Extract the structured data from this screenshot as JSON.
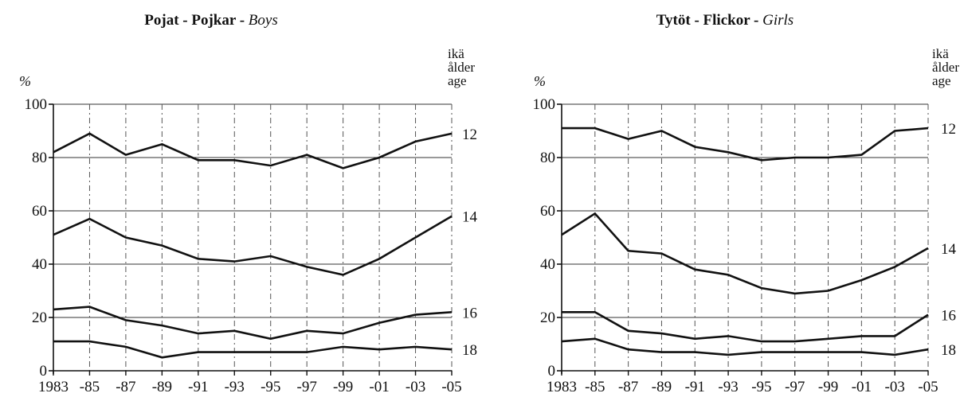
{
  "chart_data": [
    {
      "type": "line",
      "title_parts": [
        "Pojat - Pojkar - ",
        "Boys"
      ],
      "ylabel": "%",
      "right_header": [
        "ikä",
        "ålder",
        "age"
      ],
      "x_tick_labels": [
        "1983",
        "-85",
        "-87",
        "-89",
        "-91",
        "-93",
        "-95",
        "-97",
        "-99",
        "-01",
        "-03",
        "-05"
      ],
      "y_ticks": [
        0,
        20,
        40,
        60,
        80,
        100
      ],
      "ylim": [
        0,
        100
      ],
      "grid": true,
      "series": [
        {
          "name": "12",
          "values": [
            82,
            89,
            81,
            85,
            79,
            79,
            77,
            81,
            76,
            80,
            86,
            89
          ]
        },
        {
          "name": "14",
          "values": [
            51,
            57,
            50,
            47,
            42,
            41,
            43,
            39,
            36,
            42,
            50,
            58
          ]
        },
        {
          "name": "16",
          "values": [
            23,
            24,
            19,
            17,
            14,
            15,
            12,
            15,
            14,
            18,
            21,
            22
          ]
        },
        {
          "name": "18",
          "values": [
            11,
            11,
            9,
            5,
            7,
            7,
            7,
            7,
            9,
            8,
            9,
            8
          ]
        }
      ]
    },
    {
      "type": "line",
      "title_parts": [
        "Tytöt - Flickor - ",
        "Girls"
      ],
      "ylabel": "%",
      "right_header": [
        "ikä",
        "ålder",
        "age"
      ],
      "x_tick_labels": [
        "1983",
        "-85",
        "-87",
        "-89",
        "-91",
        "-93",
        "-95",
        "-97",
        "-99",
        "-01",
        "-03",
        "-05"
      ],
      "y_ticks": [
        0,
        20,
        40,
        60,
        80,
        100
      ],
      "ylim": [
        0,
        100
      ],
      "grid": true,
      "series": [
        {
          "name": "12",
          "values": [
            91,
            91,
            87,
            90,
            84,
            82,
            79,
            80,
            80,
            81,
            90,
            91
          ]
        },
        {
          "name": "14",
          "values": [
            51,
            59,
            45,
            44,
            38,
            36,
            31,
            29,
            30,
            34,
            39,
            46
          ]
        },
        {
          "name": "16",
          "values": [
            22,
            22,
            15,
            14,
            12,
            13,
            11,
            11,
            12,
            13,
            13,
            21
          ]
        },
        {
          "name": "18",
          "values": [
            11,
            12,
            8,
            7,
            7,
            6,
            7,
            7,
            7,
            7,
            6,
            8
          ]
        }
      ]
    }
  ]
}
